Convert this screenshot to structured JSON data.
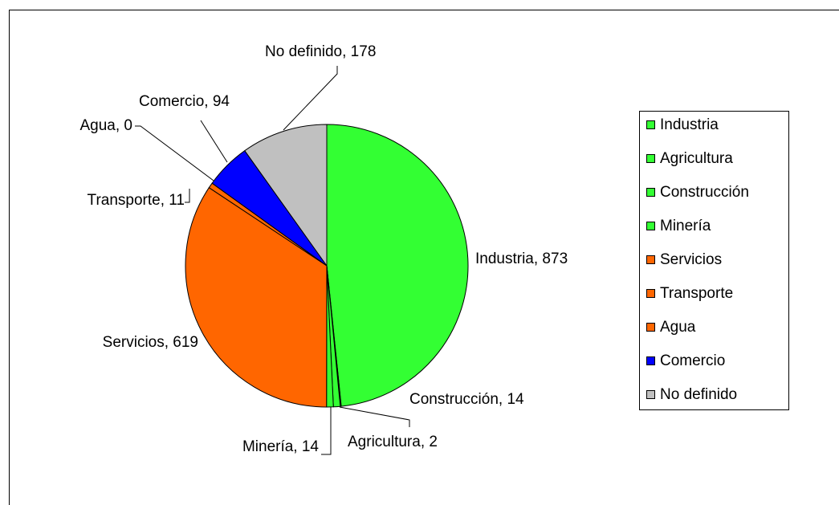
{
  "chart_data": {
    "type": "pie",
    "categories": [
      "Industria",
      "Agricultura",
      "Construcción",
      "Minería",
      "Servicios",
      "Transporte",
      "Agua",
      "Comercio",
      "No definido"
    ],
    "values": [
      873,
      2,
      14,
      14,
      619,
      11,
      0,
      94,
      178
    ],
    "value_labels": [
      "Industria, 873",
      "Agricultura, 2",
      "Construcción, 14",
      "Minería, 14",
      "Servicios, 619",
      "Transporte, 11",
      "Agua, 0",
      "Comercio, 94",
      "No definido, 178"
    ],
    "colors": [
      "#33ff33",
      "#33ff33",
      "#33ff33",
      "#33ff33",
      "#ff6600",
      "#ff6600",
      "#ff6600",
      "#0000ff",
      "#c0c0c0"
    ],
    "legend": "right"
  }
}
